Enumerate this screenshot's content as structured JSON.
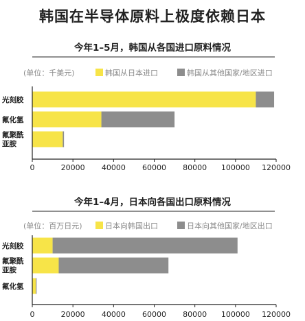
{
  "page_title": "韩国在半导体原料上极度依赖日本",
  "colors": {
    "yellow": "#f7e448",
    "gray": "#8d8d8d",
    "axis": "#222222",
    "unit_text": "#8a8a8a"
  },
  "chart_data": [
    {
      "type": "bar",
      "orientation": "horizontal",
      "stacked": true,
      "title": "今年1–5月，韩国从各国进口原料情况",
      "unit_label": "(单位：千美元)",
      "categories": [
        [
          "光刻胶"
        ],
        [
          "氟化氢"
        ],
        [
          "氟聚酰",
          "亚胺"
        ]
      ],
      "series": [
        {
          "name": "韩国从日本进口",
          "color": "#f7e448",
          "values": [
            110000,
            34000,
            15000
          ]
        },
        {
          "name": "韩国从其他国家/地区进口",
          "color": "#8d8d8d",
          "values": [
            9000,
            36000,
            600
          ]
        }
      ],
      "xlim": [
        0,
        120000
      ],
      "xticks": [
        "0",
        "20000",
        "40000",
        "60000",
        "80000",
        "100000",
        "120000"
      ],
      "tick_values": [
        0,
        20000,
        40000,
        60000,
        80000,
        100000,
        120000
      ],
      "legend_position": "top"
    },
    {
      "type": "bar",
      "orientation": "horizontal",
      "stacked": true,
      "title": "今年1–4月，日本向各国出口原料情况",
      "unit_label": "(单位：百万日元)",
      "categories": [
        [
          "光刻胶"
        ],
        [
          "氟聚酰",
          "亚胺"
        ],
        [
          "氟化氢"
        ]
      ],
      "series": [
        {
          "name": "日本向韩国出口",
          "color": "#f7e448",
          "values": [
            10000,
            13000,
            1700
          ]
        },
        {
          "name": "日本向其他国家/地区出口",
          "color": "#8d8d8d",
          "values": [
            91000,
            54000,
            400
          ]
        }
      ],
      "xlim": [
        0,
        120000
      ],
      "xticks": [
        "0",
        "20000",
        "40000",
        "60000",
        "80000",
        "100000",
        "120000"
      ],
      "tick_values": [
        0,
        20000,
        40000,
        60000,
        80000,
        100000,
        120000
      ],
      "legend_position": "top"
    }
  ]
}
